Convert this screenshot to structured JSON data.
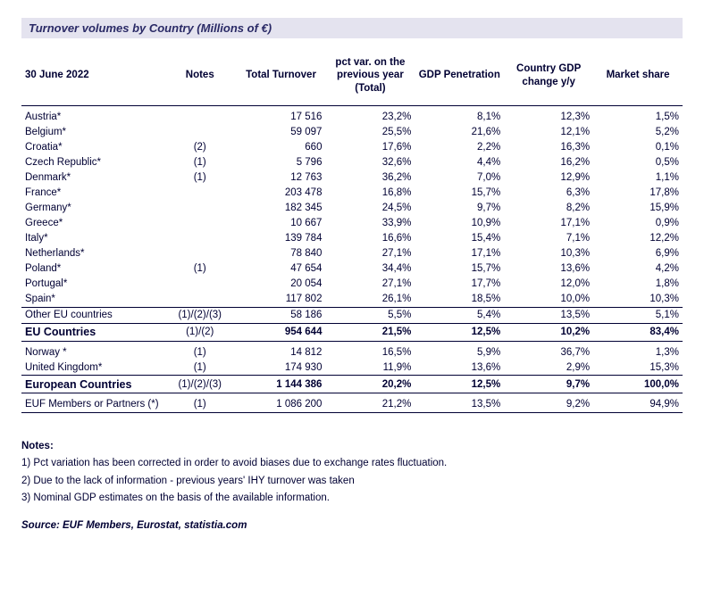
{
  "title": "Turnover volumes by Country (Millions of €)",
  "headers": {
    "date": "30 June 2022",
    "notes": "Notes",
    "total_turnover": "Total Turnover",
    "pct_var": "pct var. on the previous year (Total)",
    "gdp_pen": "GDP Penetration",
    "gdp_chg": "Country GDP change y/y",
    "mkt_share": "Market share"
  },
  "rows": [
    {
      "country": "Austria*",
      "notes": "",
      "turnover": "17 516",
      "pct": "23,2%",
      "pen": "8,1%",
      "chg": "12,3%",
      "share": "1,5%"
    },
    {
      "country": "Belgium*",
      "notes": "",
      "turnover": "59 097",
      "pct": "25,5%",
      "pen": "21,6%",
      "chg": "12,1%",
      "share": "5,2%"
    },
    {
      "country": "Croatia*",
      "notes": "(2)",
      "turnover": "660",
      "pct": "17,6%",
      "pen": "2,2%",
      "chg": "16,3%",
      "share": "0,1%"
    },
    {
      "country": "Czech Republic*",
      "notes": "(1)",
      "turnover": "5 796",
      "pct": "32,6%",
      "pen": "4,4%",
      "chg": "16,2%",
      "share": "0,5%"
    },
    {
      "country": "Denmark*",
      "notes": "(1)",
      "turnover": "12 763",
      "pct": "36,2%",
      "pen": "7,0%",
      "chg": "12,9%",
      "share": "1,1%"
    },
    {
      "country": "France*",
      "notes": "",
      "turnover": "203 478",
      "pct": "16,8%",
      "pen": "15,7%",
      "chg": "6,3%",
      "share": "17,8%"
    },
    {
      "country": "Germany*",
      "notes": "",
      "turnover": "182 345",
      "pct": "24,5%",
      "pen": "9,7%",
      "chg": "8,2%",
      "share": "15,9%"
    },
    {
      "country": "Greece*",
      "notes": "",
      "turnover": "10 667",
      "pct": "33,9%",
      "pen": "10,9%",
      "chg": "17,1%",
      "share": "0,9%"
    },
    {
      "country": "Italy*",
      "notes": "",
      "turnover": "139 784",
      "pct": "16,6%",
      "pen": "15,4%",
      "chg": "7,1%",
      "share": "12,2%"
    },
    {
      "country": "Netherlands*",
      "notes": "",
      "turnover": "78 840",
      "pct": "27,1%",
      "pen": "17,1%",
      "chg": "10,3%",
      "share": "6,9%"
    },
    {
      "country": "Poland*",
      "notes": "(1)",
      "turnover": "47 654",
      "pct": "34,4%",
      "pen": "15,7%",
      "chg": "13,6%",
      "share": "4,2%"
    },
    {
      "country": "Portugal*",
      "notes": "",
      "turnover": "20 054",
      "pct": "27,1%",
      "pen": "17,7%",
      "chg": "12,0%",
      "share": "1,8%"
    },
    {
      "country": "Spain*",
      "notes": "",
      "turnover": "117 802",
      "pct": "26,1%",
      "pen": "18,5%",
      "chg": "10,0%",
      "share": "10,3%"
    },
    {
      "country": "Other EU countries",
      "notes": "(1)/(2)/(3)",
      "turnover": "58 186",
      "pct": "5,5%",
      "pen": "5,4%",
      "chg": "13,5%",
      "share": "5,1%"
    }
  ],
  "eu_total": {
    "country": "EU Countries",
    "notes": "(1)/(2)",
    "turnover": "954 644",
    "pct": "21,5%",
    "pen": "12,5%",
    "chg": "10,2%",
    "share": "83,4%"
  },
  "non_eu": [
    {
      "country": "Norway *",
      "notes": "(1)",
      "turnover": "14 812",
      "pct": "16,5%",
      "pen": "5,9%",
      "chg": "36,7%",
      "share": "1,3%"
    },
    {
      "country": "United Kingdom*",
      "notes": "(1)",
      "turnover": "174 930",
      "pct": "11,9%",
      "pen": "13,6%",
      "chg": "2,9%",
      "share": "15,3%"
    }
  ],
  "euro_total": {
    "country": "European Countries",
    "notes": "(1)/(2)/(3)",
    "turnover": "1 144 386",
    "pct": "20,2%",
    "pen": "12,5%",
    "chg": "9,7%",
    "share": "100,0%"
  },
  "euf_row": {
    "country": "EUF Members or Partners (*)",
    "notes": "(1)",
    "turnover": "1 086 200",
    "pct": "21,2%",
    "pen": "13,5%",
    "chg": "9,2%",
    "share": "94,9%"
  },
  "footnotes": {
    "heading": "Notes:",
    "items": [
      "1) Pct variation has been corrected in order to avoid biases due to exchange rates fluctuation.",
      "2) Due to the lack of information - previous years' IHY turnover was taken",
      "3) Nominal GDP estimates on the basis of the available information."
    ]
  },
  "source": "Source: EUF Members, Eurostat, statistia.com",
  "colors": {
    "title_bg": "#e4e3ef",
    "text": "#000033",
    "rule": "#000033",
    "background": "#ffffff"
  },
  "typography": {
    "base_font": "Arial",
    "base_size_pt": 9
  }
}
